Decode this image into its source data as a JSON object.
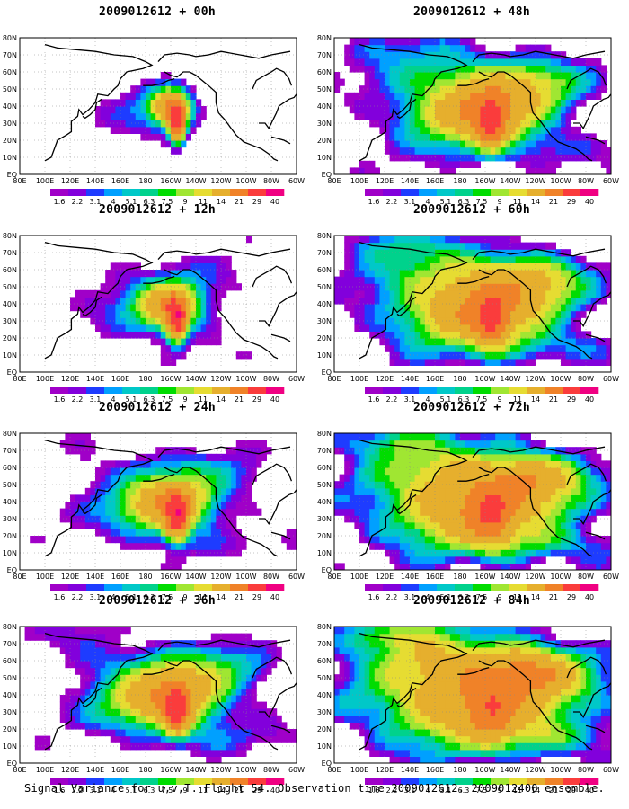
{
  "figure": {
    "caption": "Signal Variance for u,v,T. Flight 54. Observation time 2009012612. 2009012400 ensemble."
  },
  "chart_data": {
    "type": "heatmap",
    "xlabels": [
      "80E",
      "100E",
      "120E",
      "140E",
      "160E",
      "180",
      "160W",
      "140W",
      "120W",
      "100W",
      "80W",
      "60W"
    ],
    "ylabels": [
      "EQ",
      "10N",
      "20N",
      "30N",
      "40N",
      "50N",
      "60N",
      "70N",
      "80N"
    ],
    "colorbar": {
      "levels": [
        "1.6",
        "2.2",
        "3.1",
        "4",
        "5.1",
        "6.3",
        "7.5",
        "9",
        "11",
        "14",
        "21",
        "29",
        "40"
      ],
      "colors": [
        "#a000c8",
        "#8200dc",
        "#1e3cff",
        "#00a0ff",
        "#00c8c8",
        "#00d28c",
        "#00dc00",
        "#a0e632",
        "#e6dc32",
        "#e6af2d",
        "#f08228",
        "#fa3c3c",
        "#f00082"
      ]
    },
    "panels": [
      {
        "title": "2009012612 + 00h",
        "lead": 0
      },
      {
        "title": "2009012612 + 48h",
        "lead": 48
      },
      {
        "title": "2009012612 + 12h",
        "lead": 12
      },
      {
        "title": "2009012612 + 60h",
        "lead": 60
      },
      {
        "title": "2009012612 + 24h",
        "lead": 24
      },
      {
        "title": "2009012612 + 72h",
        "lead": 72
      },
      {
        "title": "2009012612 + 36h",
        "lead": 36
      },
      {
        "title": "2009012612 + 84h",
        "lead": 84
      }
    ]
  }
}
